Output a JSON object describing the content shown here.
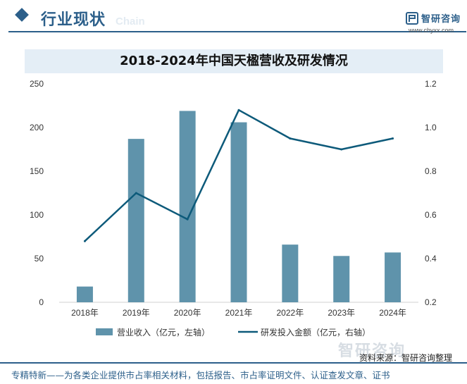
{
  "header": {
    "section_title": "行业现状",
    "ghost_text": "Chain"
  },
  "logo": {
    "name": "智研咨询",
    "url": "www.chyxx.com"
  },
  "watermark": "智研咨询",
  "source_text": "资料来源：智研咨询整理",
  "footer_text": "专精特新——为各类企业提供市占率相关材料，包括报告、市占率证明文件、认证查发文章、证书",
  "colors": {
    "brand": "#2c5f8a",
    "bar": "#5f93ab",
    "line": "#0d5a7a",
    "title_band": "#e4eef6"
  },
  "chart_data": {
    "type": "bar",
    "title": "2018-2024年中国天楹营收及研发情况",
    "categories": [
      "2018年",
      "2019年",
      "2020年",
      "2021年",
      "2022年",
      "2023年",
      "2024年"
    ],
    "series": [
      {
        "name": "营业收入（亿元，左轴）",
        "type": "bar",
        "axis": "left",
        "values": [
          18,
          187,
          219,
          206,
          66,
          53,
          57
        ]
      },
      {
        "name": "研发投入金额（亿元，右轴）",
        "type": "line",
        "axis": "right",
        "values": [
          0.48,
          0.7,
          0.58,
          1.08,
          0.95,
          0.9,
          0.95
        ]
      }
    ],
    "y_left": {
      "min": 0,
      "max": 250,
      "ticks": [
        "0",
        "50",
        "100",
        "150",
        "200",
        "250"
      ]
    },
    "y_right": {
      "min": 0.2,
      "max": 1.2,
      "ticks": [
        "0.2",
        "0.4",
        "0.6",
        "0.8",
        "1.0",
        "1.2"
      ]
    },
    "grid": false,
    "legend_position": "bottom"
  }
}
